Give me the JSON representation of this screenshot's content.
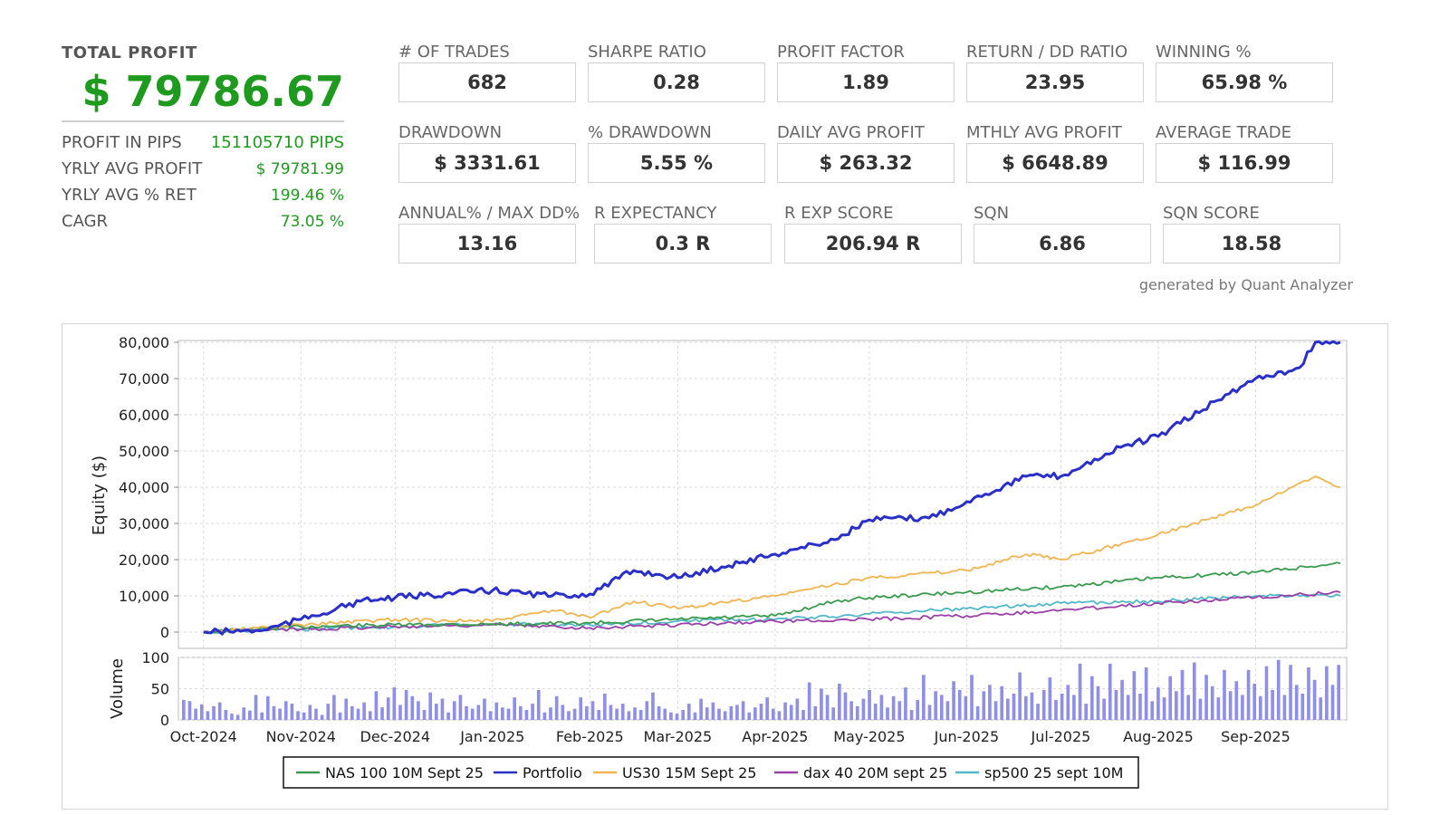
{
  "summary": {
    "total_profit_label": "TOTAL PROFIT",
    "total_profit_value": "$ 79786.67",
    "rows": [
      {
        "label": "PROFIT IN PIPS",
        "value": "151105710 PIPS"
      },
      {
        "label": "YRLY AVG PROFIT",
        "value": "$ 79781.99"
      },
      {
        "label": "YRLY AVG % RET",
        "value": "199.46 %"
      },
      {
        "label": "CAGR",
        "value": "73.05 %"
      }
    ]
  },
  "metrics": [
    {
      "label": "# OF TRADES",
      "value": "682"
    },
    {
      "label": "SHARPE RATIO",
      "value": "0.28"
    },
    {
      "label": "PROFIT FACTOR",
      "value": "1.89"
    },
    {
      "label": "RETURN / DD RATIO",
      "value": "23.95"
    },
    {
      "label": "WINNING %",
      "value": "65.98 %"
    },
    {
      "label": "DRAWDOWN",
      "value": "$ 3331.61"
    },
    {
      "label": "% DRAWDOWN",
      "value": "5.55 %"
    },
    {
      "label": "DAILY AVG PROFIT",
      "value": "$ 263.32"
    },
    {
      "label": "MTHLY AVG PROFIT",
      "value": "$ 6648.89"
    },
    {
      "label": "AVERAGE TRADE",
      "value": "$ 116.99"
    },
    {
      "label": "ANNUAL% / MAX DD%",
      "value": "13.16"
    },
    {
      "label": "R EXPECTANCY",
      "value": "0.3 R"
    },
    {
      "label": "R EXP SCORE",
      "value": "206.94 R"
    },
    {
      "label": "SQN",
      "value": "6.86"
    },
    {
      "label": "SQN SCORE",
      "value": "18.58"
    }
  ],
  "credit": "generated by Quant Analyzer",
  "colors": {
    "profit_green": "#1e9b1e",
    "portfolio": "#2a2fc8",
    "nas": "#3a9a4e",
    "us30": "#f0b550",
    "dax": "#9a40a8",
    "sp500": "#50b8c8",
    "volume": "#8f8fe8"
  },
  "chart_data": [
    {
      "type": "line",
      "ylabel": "Equity ($)",
      "ylim": [
        0,
        80000
      ],
      "y_ticks": [
        "80,000",
        "70,000",
        "60,000",
        "50,000",
        "40,000",
        "30,000",
        "20,000",
        "10,000",
        "0"
      ],
      "x_ticks": [
        "Oct-2024",
        "Nov-2024",
        "Dec-2024",
        "Jan-2025",
        "Feb-2025",
        "Mar-2025",
        "Apr-2025",
        "May-2025",
        "Jun-2025",
        "Jul-2025",
        "Aug-2025",
        "Sep-2025"
      ],
      "grid": true,
      "legend_position": "bottom",
      "series": [
        {
          "name": "NAS 100 10M Sept 25",
          "color_key": "nas",
          "x": [
            "2024-10-01",
            "2024-11-01",
            "2024-12-01",
            "2025-01-01",
            "2025-02-01",
            "2025-03-01",
            "2025-04-01",
            "2025-04-20",
            "2025-05-01",
            "2025-06-01",
            "2025-07-01",
            "2025-08-01",
            "2025-09-01",
            "2025-09-28"
          ],
          "y": [
            0,
            1500,
            2000,
            2200,
            2500,
            3500,
            4500,
            8500,
            9500,
            11000,
            12500,
            15000,
            16500,
            19000
          ]
        },
        {
          "name": "Portfolio",
          "color_key": "portfolio",
          "x": [
            "2024-10-01",
            "2024-10-20",
            "2024-11-01",
            "2024-11-20",
            "2024-12-01",
            "2025-01-01",
            "2025-01-20",
            "2025-02-01",
            "2025-02-15",
            "2025-03-01",
            "2025-03-15",
            "2025-04-01",
            "2025-04-20",
            "2025-05-01",
            "2025-05-20",
            "2025-06-01",
            "2025-06-20",
            "2025-07-01",
            "2025-07-20",
            "2025-08-01",
            "2025-08-20",
            "2025-09-01",
            "2025-09-15",
            "2025-09-20",
            "2025-09-28"
          ],
          "y": [
            0,
            500,
            3500,
            8500,
            9500,
            11500,
            10000,
            10500,
            17000,
            15000,
            18000,
            21500,
            25500,
            31000,
            31500,
            36000,
            43000,
            43000,
            51000,
            54000,
            64000,
            70000,
            73000,
            80000,
            80000
          ]
        },
        {
          "name": "US30 15M Sept 25",
          "color_key": "us30",
          "x": [
            "2024-10-01",
            "2024-11-01",
            "2024-12-01",
            "2025-01-01",
            "2025-01-20",
            "2025-02-01",
            "2025-02-15",
            "2025-03-01",
            "2025-04-01",
            "2025-05-01",
            "2025-06-01",
            "2025-06-20",
            "2025-07-01",
            "2025-08-01",
            "2025-09-01",
            "2025-09-20",
            "2025-09-28"
          ],
          "y": [
            0,
            2000,
            3500,
            3000,
            6000,
            4000,
            8500,
            6500,
            10000,
            15000,
            17000,
            21500,
            20000,
            27000,
            35000,
            43000,
            40000
          ]
        },
        {
          "name": "dax 40 20M sept 25",
          "color_key": "dax",
          "x": [
            "2024-10-01",
            "2024-11-01",
            "2024-12-01",
            "2025-01-01",
            "2025-02-01",
            "2025-03-01",
            "2025-04-01",
            "2025-05-01",
            "2025-06-01",
            "2025-07-01",
            "2025-08-01",
            "2025-09-01",
            "2025-09-28"
          ],
          "y": [
            0,
            800,
            1500,
            2000,
            1200,
            2000,
            3000,
            3500,
            4500,
            6000,
            8000,
            9500,
            11000
          ]
        },
        {
          "name": "sp500 25 sept 10M",
          "color_key": "sp500",
          "x": [
            "2024-10-01",
            "2024-11-01",
            "2024-12-01",
            "2025-01-01",
            "2025-02-01",
            "2025-03-01",
            "2025-04-01",
            "2025-05-01",
            "2025-06-01",
            "2025-07-01",
            "2025-08-01",
            "2025-09-01",
            "2025-09-28"
          ],
          "y": [
            0,
            800,
            1500,
            2200,
            2000,
            3000,
            3500,
            5000,
            6500,
            8000,
            8500,
            10000,
            10000
          ]
        }
      ]
    },
    {
      "type": "bar",
      "ylabel": "Volume",
      "ylim": [
        0,
        100
      ],
      "y_ticks": [
        "100",
        "50",
        "0"
      ],
      "series": [
        {
          "name": "Volume",
          "color_key": "volume",
          "values": [
            32,
            30,
            18,
            25,
            14,
            22,
            28,
            16,
            10,
            8,
            20,
            15,
            40,
            12,
            38,
            22,
            18,
            30,
            26,
            14,
            12,
            24,
            18,
            8,
            26,
            40,
            12,
            34,
            22,
            18,
            28,
            14,
            46,
            20,
            36,
            52,
            24,
            48,
            38,
            30,
            16,
            44,
            26,
            34,
            12,
            30,
            40,
            22,
            18,
            24,
            34,
            14,
            28,
            20,
            18,
            36,
            22,
            16,
            26,
            48,
            12,
            20,
            38,
            24,
            14,
            18,
            36,
            22,
            30,
            16,
            42,
            24,
            18,
            26,
            14,
            20,
            16,
            30,
            44,
            22,
            18,
            12,
            10,
            16,
            26,
            12,
            34,
            20,
            28,
            18,
            14,
            22,
            24,
            30,
            12,
            20,
            26,
            36,
            18,
            14,
            28,
            24,
            34,
            16,
            60,
            22,
            50,
            40,
            20,
            58,
            44,
            30,
            22,
            34,
            48,
            26,
            40,
            20,
            38,
            30,
            52,
            16,
            32,
            72,
            24,
            46,
            40,
            30,
            62,
            48,
            38,
            72,
            22,
            46,
            56,
            30,
            54,
            34,
            42,
            76,
            38,
            44,
            26,
            48,
            68,
            32,
            42,
            56,
            40,
            90,
            26,
            70,
            54,
            34,
            90,
            48,
            64,
            40,
            78,
            42,
            84,
            30,
            52,
            36,
            70,
            46,
            80,
            40,
            92,
            34,
            72,
            54,
            36,
            80,
            46,
            62,
            40,
            80,
            58,
            38,
            86,
            48,
            96,
            40,
            88,
            56,
            42,
            84,
            64,
            36,
            86,
            56,
            88
          ]
        }
      ]
    }
  ]
}
